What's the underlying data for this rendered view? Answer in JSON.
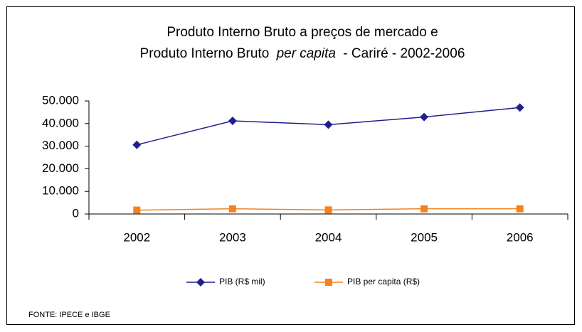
{
  "chart_data": {
    "type": "line",
    "title": {
      "line1": "Produto Interno Bruto a preços de mercado  e",
      "line2": [
        "Produto Interno Bruto",
        "per capita",
        "- Cariré - 2002-2006"
      ]
    },
    "categories": [
      "2002",
      "2003",
      "2004",
      "2005",
      "2006"
    ],
    "series": [
      {
        "name": "PIB (R$ mil)",
        "color": "#1f1f8f",
        "marker": "diamond",
        "values": [
          30600,
          41200,
          39500,
          42900,
          47100
        ]
      },
      {
        "name": "PIB per capita (R$)",
        "color": "#f58220",
        "marker": "square",
        "values": [
          1700,
          2300,
          1800,
          2300,
          2300
        ]
      }
    ],
    "ylim": [
      0,
      50000
    ],
    "yticks": [
      0,
      {
        "value": 10000,
        "label": "10.000"
      },
      {
        "value": 20000,
        "label": "20.000"
      },
      {
        "value": 30000,
        "label": "30.000"
      },
      {
        "value": 40000,
        "label": "40.000"
      },
      {
        "value": 50000,
        "label": "50.000"
      }
    ],
    "grid": false,
    "legend": "bottom",
    "source": "FONTE: IPECE e IBGE"
  }
}
